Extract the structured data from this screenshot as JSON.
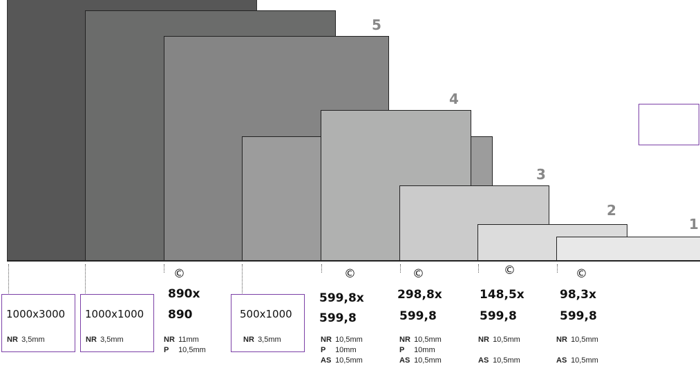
{
  "tile_numbers": [
    "5",
    "4",
    "3",
    "2",
    "1"
  ],
  "copyright_symbol": "©",
  "columns": [
    {
      "size_boxed": "1000x3000",
      "specs": [
        {
          "code": "NR",
          "value": "3,5mm"
        }
      ]
    },
    {
      "size_boxed": "1000x1000",
      "specs": [
        {
          "code": "NR",
          "value": "3,5mm"
        }
      ]
    },
    {
      "size_line1": "890x",
      "size_line2": "890",
      "specs": [
        {
          "code": "NR",
          "value": "11mm"
        },
        {
          "code": "P",
          "value": "10,5mm"
        }
      ]
    },
    {
      "size_boxed": "500x1000",
      "specs": [
        {
          "code": "NR",
          "value": "3,5mm"
        }
      ]
    },
    {
      "size_line1": "599,8x",
      "size_line2": "599,8",
      "specs": [
        {
          "code": "NR",
          "value": "10,5mm"
        },
        {
          "code": "P",
          "value": "10mm"
        },
        {
          "code": "AS",
          "value": "10,5mm"
        }
      ]
    },
    {
      "size_line1": "298,8x",
      "size_line2": "599,8",
      "specs": [
        {
          "code": "NR",
          "value": "10,5mm"
        },
        {
          "code": "P",
          "value": "10mm"
        },
        {
          "code": "AS",
          "value": "10,5mm"
        }
      ]
    },
    {
      "size_line1": "148,5x",
      "size_line2": "599,8",
      "specs": [
        {
          "code": "NR",
          "value": "10,5mm"
        },
        {
          "code": "AS",
          "value": "10,5mm"
        }
      ]
    },
    {
      "size_line1": "98,3x",
      "size_line2": "599,8",
      "specs": [
        {
          "code": "NR",
          "value": "10,5mm"
        },
        {
          "code": "AS",
          "value": "10,5mm"
        }
      ]
    }
  ],
  "colors": {
    "tile_darkest": "#575757",
    "tile_dark": "#6b6c6b",
    "tile_mid_dark": "#858585",
    "tile_mid": "#9c9c9c",
    "tile_light": "#b0b1b0",
    "tile_lighter": "#cbcbcb",
    "tile_pale": "#dcdcdc",
    "tile_palest": "#e8e8e8",
    "label_border": "#7b3fa6",
    "number_gray": "#888888"
  }
}
